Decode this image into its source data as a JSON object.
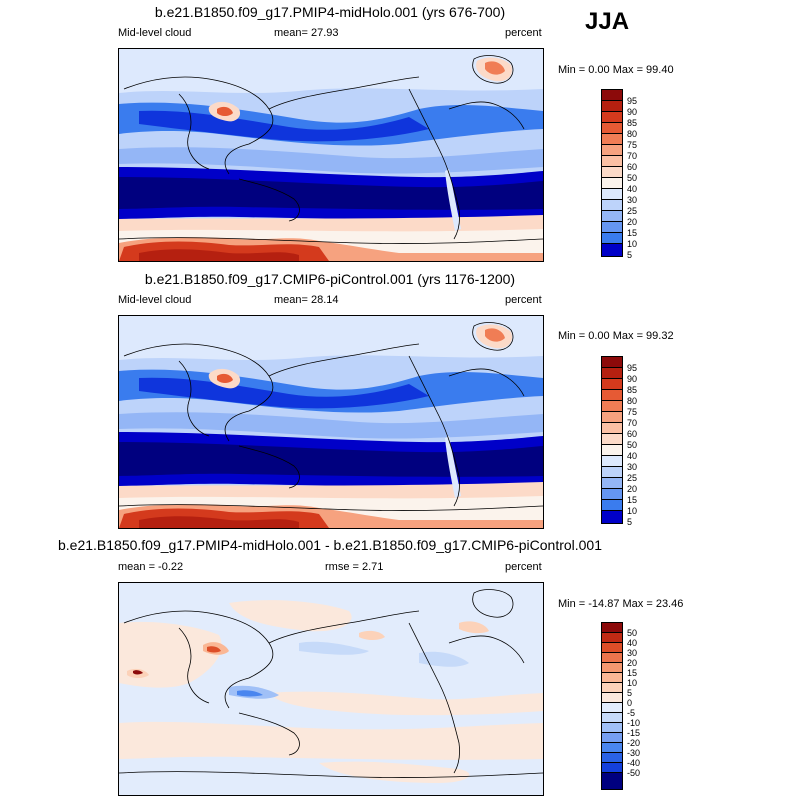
{
  "season": "JJA",
  "palette_abs": [
    "#00007f",
    "#0000c8",
    "#0f35dc",
    "#1f5be8",
    "#3a7cee",
    "#6596f2",
    "#94b6f6",
    "#bdd3fa",
    "#dde9fd",
    "#fbf3ec",
    "#fcdac8",
    "#fbc0a4",
    "#f6a27f",
    "#f07d55",
    "#e65a34",
    "#d43a1d",
    "#b52010",
    "#8c0a0a"
  ],
  "palette_diff": [
    "#00007f",
    "#0000c8",
    "#1440dc",
    "#2a62e6",
    "#4a86ef",
    "#769ff2",
    "#a0c0f7",
    "#c6daf9",
    "#e2ecfc",
    "#fbe8dc",
    "#fcd2b9",
    "#fab795",
    "#f49870",
    "#ec744c",
    "#dd4e28",
    "#c02a14",
    "#8c0a0a"
  ],
  "panels": [
    {
      "title": "b.e21.B1850.f09_g17.PMIP4-midHolo.001 (yrs 676-700)",
      "left_label": "Mid-level cloud",
      "center_label": "mean=  27.93",
      "right_label": "percent",
      "minmax": "Min =   0.00 Max =  99.40",
      "colorbar_labels": [
        "95",
        "90",
        "85",
        "80",
        "75",
        "70",
        "60",
        "50",
        "40",
        "30",
        "25",
        "20",
        "15",
        "10",
        "5"
      ]
    },
    {
      "title": "b.e21.B1850.f09_g17.CMIP6-piControl.001 (yrs 1176-1200)",
      "left_label": "Mid-level cloud",
      "center_label": "mean=  28.14",
      "right_label": "percent",
      "minmax": "Min =   0.00 Max =  99.32",
      "colorbar_labels": [
        "95",
        "90",
        "85",
        "80",
        "75",
        "70",
        "60",
        "50",
        "40",
        "30",
        "25",
        "20",
        "15",
        "10",
        "5"
      ]
    },
    {
      "title": "b.e21.B1850.f09_g17.PMIP4-midHolo.001 - b.e21.B1850.f09_g17.CMIP6-piControl.001",
      "left_label": "mean =  -0.22",
      "center_label": "rmse =   2.71",
      "right_label": "percent",
      "minmax": "Min = -14.87 Max =  23.46",
      "colorbar_labels": [
        "50",
        "40",
        "30",
        "20",
        "15",
        "10",
        "5",
        "0",
        "-5",
        "-10",
        "-15",
        "-20",
        "-30",
        "-40",
        "-50"
      ]
    }
  ]
}
